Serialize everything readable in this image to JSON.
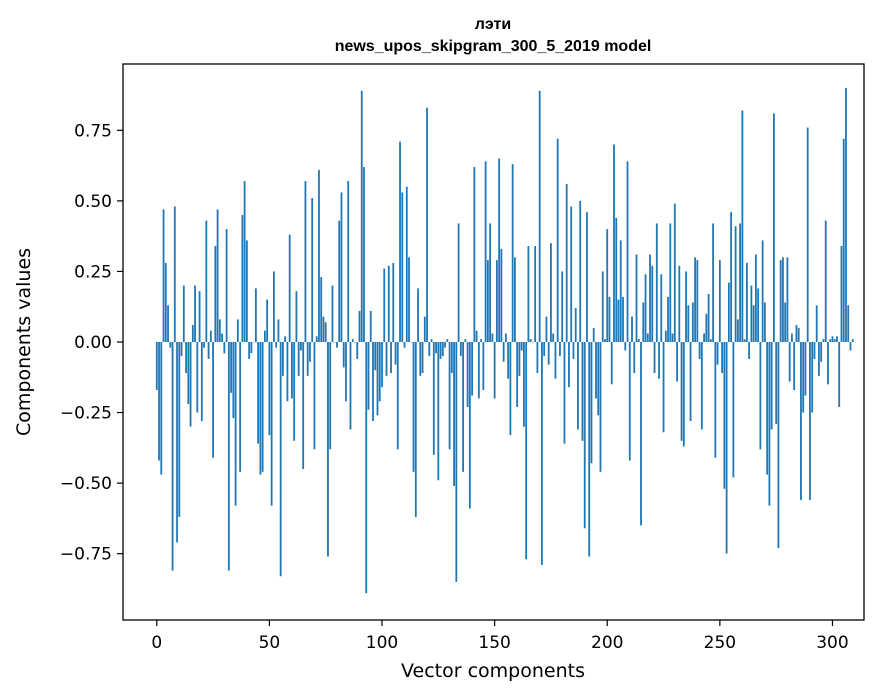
{
  "chart_data": {
    "type": "bar",
    "title_line1": "лэти",
    "title_line2": "news_upos_skipgram_300_5_2019 model",
    "xlabel": "Vector components",
    "ylabel": "Components values",
    "xlim": [
      -15,
      314
    ],
    "ylim": [
      -0.985,
      0.985
    ],
    "xticks": [
      0,
      50,
      100,
      150,
      200,
      250,
      300
    ],
    "xtick_labels": [
      "0",
      "50",
      "100",
      "150",
      "200",
      "250",
      "300"
    ],
    "yticks": [
      -0.75,
      -0.5,
      -0.25,
      0.0,
      0.25,
      0.5,
      0.75
    ],
    "ytick_labels": [
      "−0.75",
      "−0.50",
      "−0.25",
      "0.00",
      "0.25",
      "0.50",
      "0.75"
    ],
    "bar_color": "#1f77b4",
    "values": [
      -0.17,
      -0.42,
      -0.47,
      0.47,
      0.28,
      0.13,
      -0.02,
      -0.81,
      0.48,
      -0.71,
      -0.62,
      -0.05,
      0.2,
      -0.11,
      -0.22,
      -0.3,
      0.06,
      0.2,
      -0.25,
      0.18,
      -0.28,
      -0.02,
      0.43,
      -0.06,
      0.04,
      -0.41,
      0.34,
      0.47,
      0.08,
      0.03,
      -0.04,
      0.4,
      -0.81,
      -0.18,
      -0.27,
      -0.58,
      0.08,
      -0.46,
      0.45,
      0.57,
      0.36,
      -0.06,
      -0.04,
      0.0,
      0.19,
      -0.36,
      -0.47,
      -0.46,
      0.04,
      0.15,
      -0.33,
      -0.58,
      0.25,
      -0.02,
      0.08,
      -0.83,
      -0.12,
      0.02,
      -0.21,
      0.38,
      -0.2,
      -0.35,
      0.18,
      -0.12,
      -0.03,
      -0.45,
      0.57,
      -0.12,
      -0.07,
      0.51,
      -0.38,
      0.02,
      0.61,
      0.23,
      0.09,
      0.07,
      -0.76,
      -0.38,
      0.2,
      0.0,
      -0.02,
      0.43,
      0.53,
      -0.09,
      -0.21,
      0.57,
      -0.31,
      0.01,
      0.0,
      -0.06,
      0.11,
      0.89,
      0.62,
      -0.89,
      -0.24,
      0.11,
      -0.28,
      -0.1,
      -0.26,
      -0.21,
      -0.16,
      0.26,
      -0.12,
      0.27,
      -0.11,
      0.28,
      -0.08,
      -0.38,
      0.71,
      0.53,
      -0.02,
      0.55,
      0.3,
      0.0,
      -0.46,
      -0.62,
      0.19,
      -0.12,
      -0.11,
      0.09,
      0.83,
      -0.05,
      0.01,
      -0.4,
      -0.04,
      -0.49,
      -0.06,
      -0.05,
      -0.02,
      0.01,
      -0.38,
      -0.11,
      -0.51,
      -0.85,
      0.42,
      -0.05,
      -0.46,
      0.01,
      -0.23,
      -0.59,
      -0.19,
      0.62,
      0.04,
      -0.2,
      0.01,
      -0.17,
      0.64,
      0.29,
      0.42,
      0.03,
      -0.2,
      0.29,
      0.65,
      0.33,
      -0.07,
      0.03,
      -0.13,
      -0.33,
      0.63,
      0.3,
      -0.23,
      -0.12,
      -0.03,
      -0.3,
      -0.77,
      0.34,
      0.01,
      0.0,
      0.34,
      -0.11,
      0.89,
      -0.79,
      -0.05,
      0.09,
      -0.08,
      0.35,
      0.03,
      -0.13,
      0.72,
      -0.05,
      0.25,
      -0.36,
      0.56,
      -0.16,
      0.48,
      -0.06,
      0.12,
      -0.31,
      0.5,
      -0.35,
      -0.66,
      0.46,
      -0.76,
      -0.43,
      0.05,
      -0.2,
      -0.26,
      -0.46,
      0.25,
      0.01,
      0.4,
      0.16,
      -0.15,
      0.7,
      0.44,
      0.15,
      0.36,
      0.16,
      -0.03,
      0.64,
      -0.42,
      0.09,
      -0.11,
      0.31,
      0.01,
      -0.65,
      0.14,
      0.24,
      0.03,
      0.31,
      0.27,
      -0.11,
      0.42,
      -0.13,
      0.24,
      -0.32,
      0.04,
      0.16,
      0.42,
      0.03,
      0.49,
      -0.14,
      0.27,
      -0.35,
      -0.37,
      0.25,
      0.13,
      -0.28,
      0.14,
      0.3,
      0.29,
      -0.06,
      -0.31,
      0.03,
      0.1,
      0.17,
      0.01,
      0.42,
      -0.41,
      -0.08,
      0.29,
      -0.11,
      -0.52,
      -0.75,
      0.21,
      0.46,
      -0.48,
      0.41,
      0.08,
      0.42,
      0.82,
      0.01,
      0.28,
      -0.06,
      0.2,
      0.13,
      0.31,
      0.19,
      -0.38,
      0.36,
      0.14,
      -0.47,
      -0.58,
      -0.31,
      0.81,
      -0.29,
      -0.73,
      0.29,
      0.3,
      0.14,
      0.3,
      -0.14,
      0.03,
      -0.17,
      0.06,
      0.05,
      -0.56,
      -0.25,
      -0.19,
      0.76,
      -0.56,
      -0.25,
      -0.06,
      0.13,
      -0.12,
      -0.07,
      0.01,
      0.43,
      -0.15,
      0.01,
      0.02,
      0.01,
      0.02,
      -0.23,
      0.34,
      0.72,
      0.9,
      0.13,
      -0.03,
      0.01
    ]
  }
}
